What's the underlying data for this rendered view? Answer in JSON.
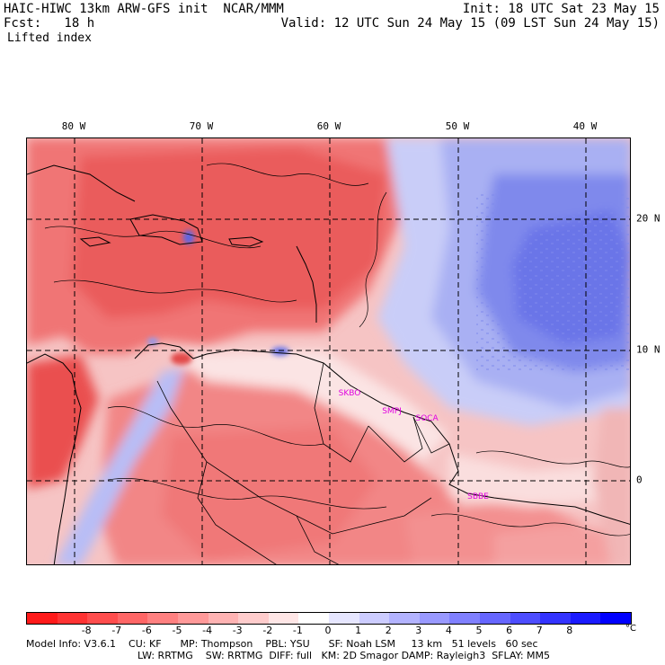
{
  "header": {
    "title": "HAIC-HIWC 13km ARW-GFS init  NCAR/MMM",
    "fcst": "Fcst:   18 h",
    "init": "Init: 18 UTC Sat 23 May 15",
    "valid": "Valid: 12 UTC Sun 24 May 15 (09 LST Sun 24 May 15)",
    "variable": "Lifted index"
  },
  "map": {
    "lon_labels": [
      "80 W",
      "70 W",
      "60 W",
      "50 W",
      "40 W"
    ],
    "lat_labels": [
      "20 N",
      "10 N",
      "0"
    ],
    "stations": [
      "SKBO",
      "SMPJ",
      "SOCA",
      "SBBE"
    ],
    "colors": {
      "negative_strong": "#e24a4a",
      "negative_medium": "#f27a7a",
      "negative_light": "#f8b4b4",
      "neutral": "#fff5f5",
      "positive_light": "#c9cdf8",
      "positive_medium": "#9aa3f1",
      "positive_strong": "#5b66e6",
      "station_label": "#e000e0"
    }
  },
  "colorbar": {
    "colors": [
      "#ff1a1a",
      "#ff3333",
      "#ff4d4d",
      "#ff6666",
      "#ff8080",
      "#ff9999",
      "#ffb3b3",
      "#ffcccc",
      "#ffe6e6",
      "#ffffff",
      "#e6e6ff",
      "#ccccff",
      "#b3b3ff",
      "#9999ff",
      "#8080ff",
      "#6666ff",
      "#4d4dff",
      "#3333ff",
      "#1a1aff",
      "#0000ff"
    ],
    "tick_labels": [
      "-8",
      "-7",
      "-6",
      "-5",
      "-4",
      "-3",
      "-2",
      "-1",
      "0",
      "1",
      "2",
      "3",
      "4",
      "5",
      "6",
      "7",
      "8"
    ],
    "unit": "°C"
  },
  "info": {
    "line1": "Model Info: V3.6.1    CU: KF      MP: Thompson    PBL: YSU      SF: Noah LSM     13 km   51 levels   60 sec",
    "line2": "LW: RRTMG    SW: RRTMG  DIFF: full   KM: 2D Smagor DAMP: Rayleigh3  SFLAY: MM5"
  }
}
